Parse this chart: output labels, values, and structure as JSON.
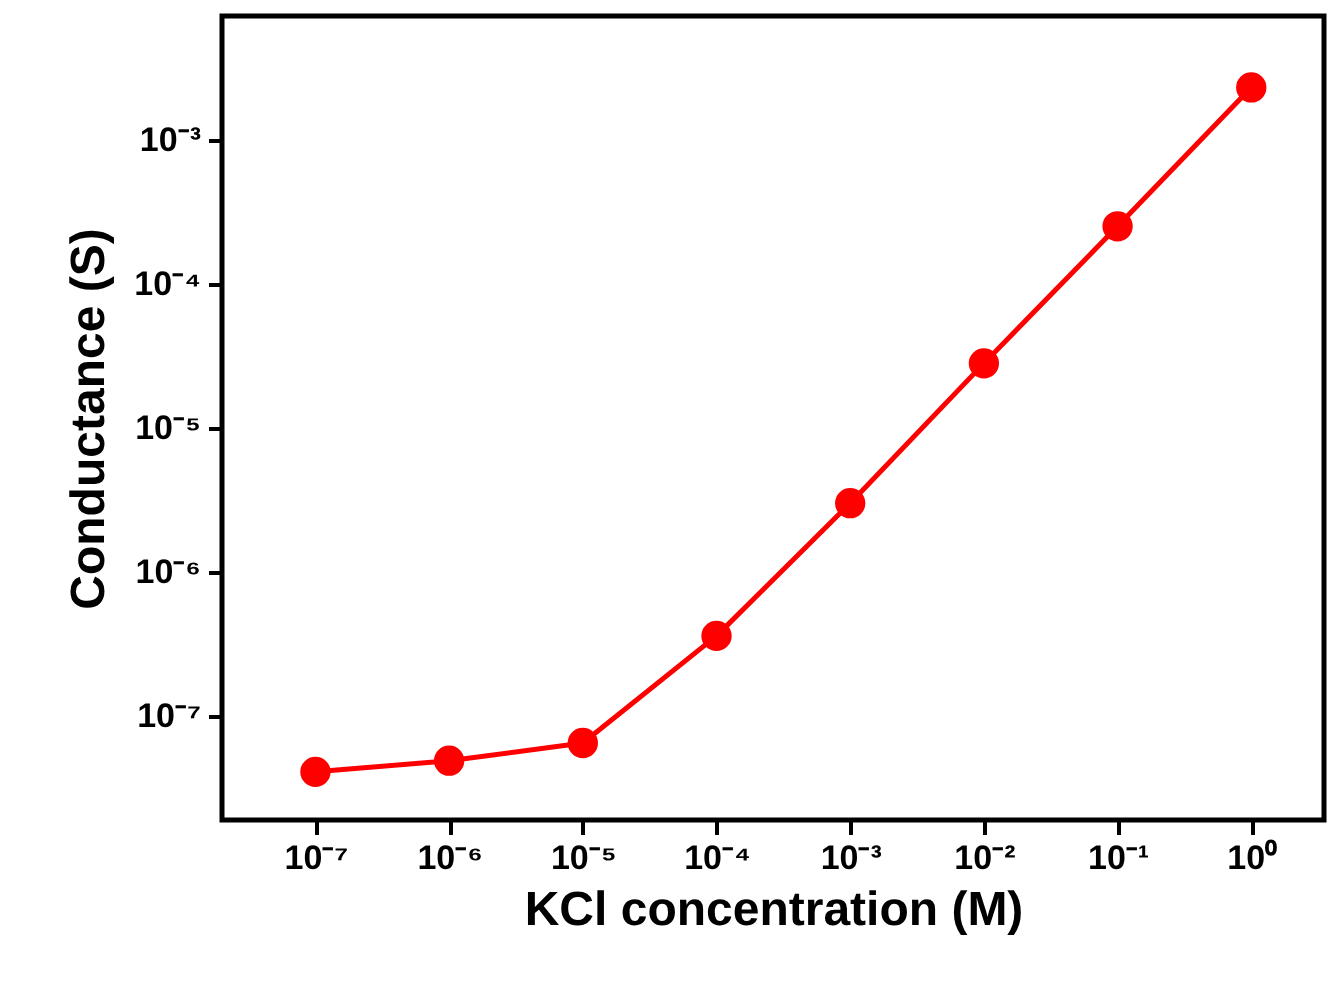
{
  "chart_data": {
    "type": "line",
    "xlabel": "KCl concentration (M)",
    "ylabel": "Conductance (S)",
    "x": [
      1e-07,
      1e-06,
      1e-05,
      0.0001,
      0.001,
      0.01,
      0.1,
      1
    ],
    "series": [
      {
        "color": "#ff0000",
        "values": [
          4.1e-08,
          4.9e-08,
          6.5e-08,
          3.6e-07,
          3e-06,
          2.8e-05,
          0.00025,
          0.0023
        ]
      }
    ],
    "log": "xy",
    "marker": "circle",
    "line_style": "solid",
    "xlim": [
      2e-08,
      3.5
    ],
    "ylim": [
      1.9e-08,
      0.0072
    ],
    "xticks": [
      {
        "value": 1e-07,
        "label": "10⁻⁷"
      },
      {
        "value": 1e-06,
        "label": "10⁻⁶"
      },
      {
        "value": 1e-05,
        "label": "10⁻⁵"
      },
      {
        "value": 0.0001,
        "label": "10⁻⁴"
      },
      {
        "value": 0.001,
        "label": "10⁻³"
      },
      {
        "value": 0.01,
        "label": "10⁻²"
      },
      {
        "value": 0.1,
        "label": "10⁻¹"
      },
      {
        "value": 1,
        "label": "10⁰"
      }
    ],
    "yticks": [
      {
        "value": 1e-07,
        "label": "10⁻⁷"
      },
      {
        "value": 1e-06,
        "label": "10⁻⁶"
      },
      {
        "value": 1e-05,
        "label": "10⁻⁵"
      },
      {
        "value": 0.0001,
        "label": "10⁻⁴"
      },
      {
        "value": 0.001,
        "label": "10⁻³"
      }
    ]
  }
}
